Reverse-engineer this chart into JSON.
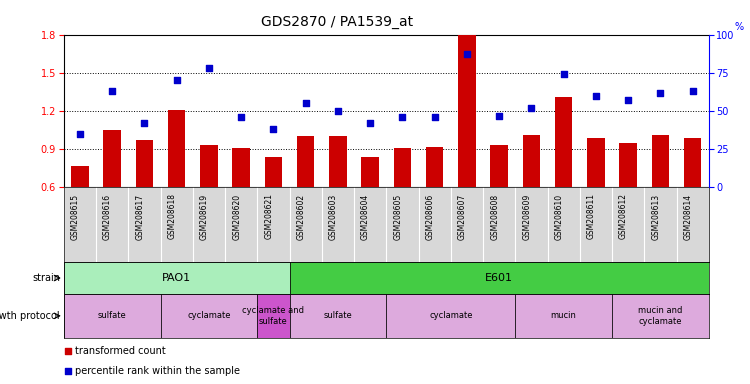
{
  "title": "GDS2870 / PA1539_at",
  "samples": [
    "GSM208615",
    "GSM208616",
    "GSM208617",
    "GSM208618",
    "GSM208619",
    "GSM208620",
    "GSM208621",
    "GSM208602",
    "GSM208603",
    "GSM208604",
    "GSM208605",
    "GSM208606",
    "GSM208607",
    "GSM208608",
    "GSM208609",
    "GSM208610",
    "GSM208611",
    "GSM208612",
    "GSM208613",
    "GSM208614"
  ],
  "transformed_count": [
    0.77,
    1.05,
    0.97,
    1.21,
    0.93,
    0.91,
    0.84,
    1.0,
    1.0,
    0.84,
    0.91,
    0.92,
    1.8,
    0.93,
    1.01,
    1.31,
    0.99,
    0.95,
    1.01,
    0.99
  ],
  "percentile_rank": [
    35,
    63,
    42,
    70,
    78,
    46,
    38,
    55,
    50,
    42,
    46,
    46,
    87,
    47,
    52,
    74,
    60,
    57,
    62,
    63
  ],
  "ylim_left": [
    0.6,
    1.8
  ],
  "ylim_right": [
    0,
    100
  ],
  "yticks_left": [
    0.6,
    0.9,
    1.2,
    1.5,
    1.8
  ],
  "yticks_right": [
    0,
    25,
    50,
    75,
    100
  ],
  "bar_color": "#cc0000",
  "scatter_color": "#0000cc",
  "xtick_bg": "#d8d8d8",
  "strain_labels": [
    {
      "label": "PAO1",
      "start": 0,
      "end": 6,
      "color": "#aaeebb"
    },
    {
      "label": "E601",
      "start": 7,
      "end": 19,
      "color": "#44cc44"
    }
  ],
  "growth_labels": [
    {
      "label": "sulfate",
      "start": 0,
      "end": 2,
      "color": "#ddaadd"
    },
    {
      "label": "cyclamate",
      "start": 3,
      "end": 5,
      "color": "#ddaadd"
    },
    {
      "label": "cyclamate and\nsulfate",
      "start": 6,
      "end": 6,
      "color": "#cc55cc"
    },
    {
      "label": "sulfate",
      "start": 7,
      "end": 9,
      "color": "#ddaadd"
    },
    {
      "label": "cyclamate",
      "start": 10,
      "end": 13,
      "color": "#ddaadd"
    },
    {
      "label": "mucin",
      "start": 14,
      "end": 16,
      "color": "#ddaadd"
    },
    {
      "label": "mucin and\ncyclamate",
      "start": 17,
      "end": 19,
      "color": "#ddaadd"
    }
  ],
  "bg_color": "#ffffff"
}
